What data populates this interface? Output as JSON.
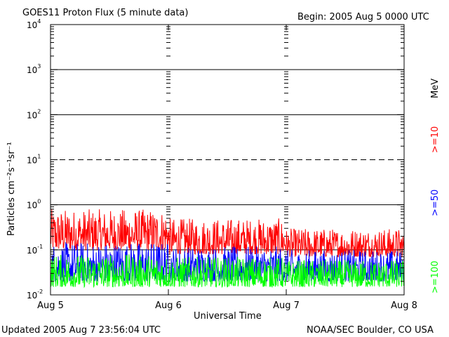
{
  "chart_data": {
    "type": "line",
    "title": "GOES11 Proton Flux (5 minute data)",
    "begin_label": "Begin: 2005 Aug 5 0000 UTC",
    "ylabel": "Particles cm⁻²s⁻¹sr⁻¹",
    "xlabel": "Universal Time",
    "footer_left": "Updated 2005 Aug  7 23:56:04 UTC",
    "footer_right": "NOAA/SEC Boulder, CO USA",
    "x_ticks": [
      "Aug 5",
      "Aug 6",
      "Aug 7",
      "Aug 8"
    ],
    "xlim_days": [
      0,
      3
    ],
    "y_scale": "log",
    "ylim": [
      0.01,
      10000
    ],
    "y_ticks": [
      {
        "base": "10",
        "exp": "-2"
      },
      {
        "base": "10",
        "exp": "-1"
      },
      {
        "base": "10",
        "exp": "0"
      },
      {
        "base": "10",
        "exp": "1"
      },
      {
        "base": "10",
        "exp": "2"
      },
      {
        "base": "10",
        "exp": "3"
      },
      {
        "base": "10",
        "exp": "4"
      }
    ],
    "threshold_dashed_at": 10,
    "legend_unit": "MeV",
    "series": [
      {
        "name": ">=10",
        "color": "#ff0000",
        "typical_range": [
          0.08,
          0.6
        ],
        "envelope_by_day": [
          [
            0.1,
            0.8
          ],
          [
            0.08,
            0.5
          ],
          [
            0.07,
            0.3
          ],
          [
            0.07,
            0.25
          ]
        ]
      },
      {
        "name": ">=50",
        "color": "#0000ff",
        "typical_range": [
          0.02,
          0.12
        ],
        "envelope_by_day": [
          [
            0.02,
            0.15
          ],
          [
            0.02,
            0.12
          ],
          [
            0.02,
            0.1
          ],
          [
            0.02,
            0.1
          ]
        ]
      },
      {
        "name": ">=100",
        "color": "#00ff00",
        "typical_range": [
          0.015,
          0.07
        ],
        "envelope_by_day": [
          [
            0.015,
            0.08
          ],
          [
            0.015,
            0.07
          ],
          [
            0.015,
            0.06
          ],
          [
            0.015,
            0.05
          ]
        ]
      }
    ]
  }
}
